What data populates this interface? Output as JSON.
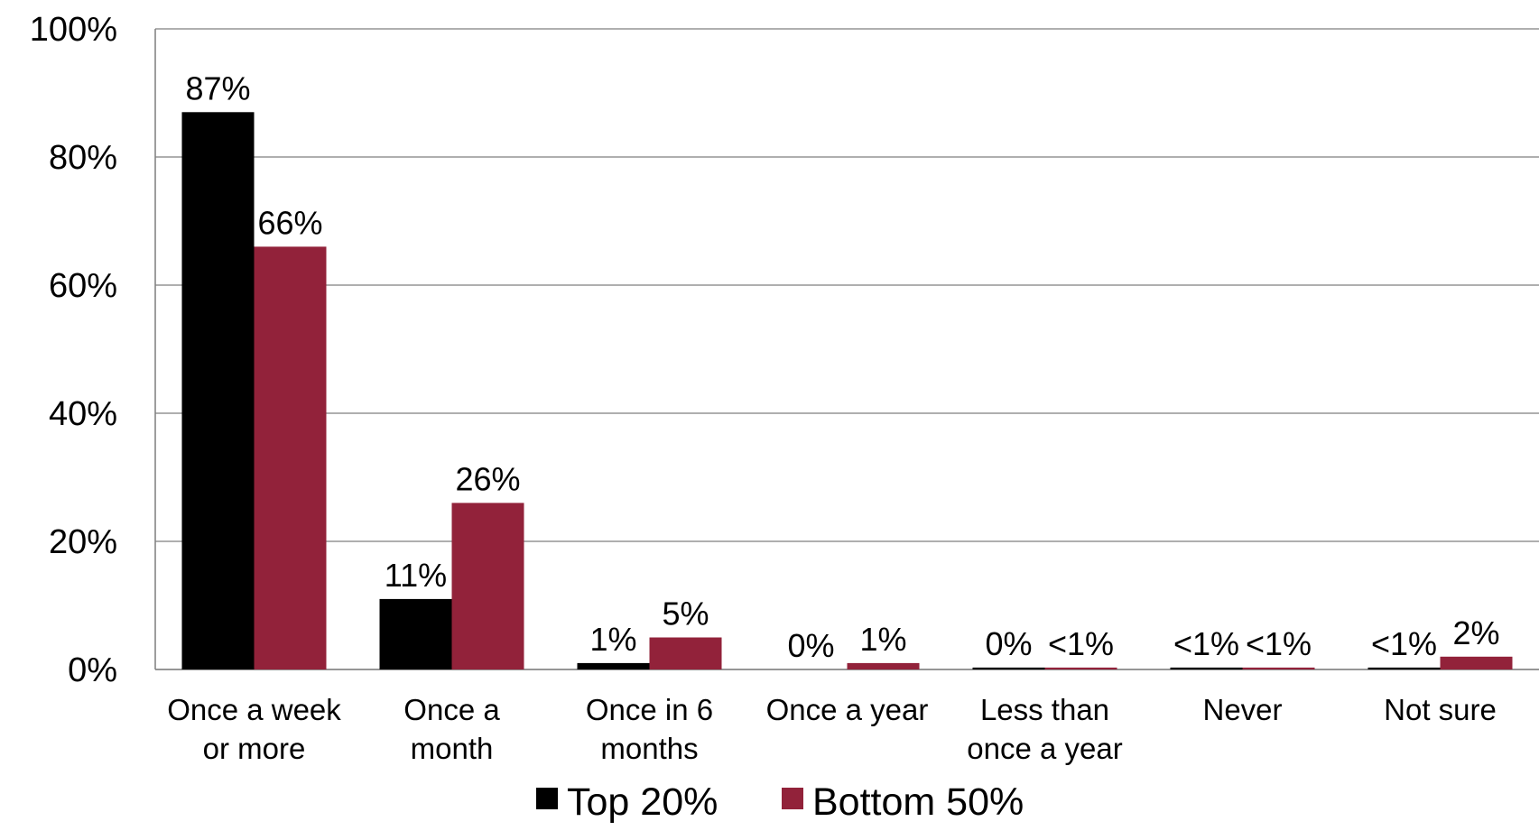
{
  "chart_data": {
    "type": "bar",
    "title": "",
    "xlabel": "",
    "ylabel": "",
    "ylim": [
      0,
      100
    ],
    "yticks": [
      0,
      20,
      40,
      60,
      80,
      100
    ],
    "ytick_labels": [
      "0%",
      "20%",
      "40%",
      "60%",
      "80%",
      "100%"
    ],
    "grid": true,
    "legend_position": "bottom",
    "categories": [
      [
        "Once a week",
        "or more"
      ],
      [
        "Once a",
        "month"
      ],
      [
        "Once in 6",
        "months"
      ],
      [
        "Once a year"
      ],
      [
        "Less than",
        "once a year"
      ],
      [
        "Never"
      ],
      [
        "Not sure"
      ]
    ],
    "series": [
      {
        "name": "Top 20%",
        "color": "#000000",
        "values": [
          87,
          11,
          1,
          0,
          0.3,
          0.3,
          0.3
        ],
        "labels": [
          "87%",
          "11%",
          "1%",
          "0%",
          "0%",
          "<1%",
          "<1%"
        ]
      },
      {
        "name": "Bottom 50%",
        "color": "#92223A",
        "values": [
          66,
          26,
          5,
          1,
          0.3,
          0.3,
          2
        ],
        "labels": [
          "66%",
          "26%",
          "5%",
          "1%",
          "<1%",
          "<1%",
          "2%"
        ]
      }
    ]
  }
}
